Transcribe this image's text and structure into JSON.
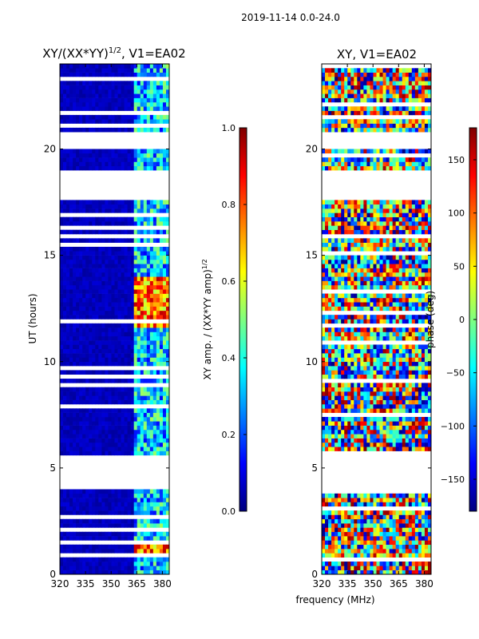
{
  "suptitle": "2019-11-14 0.0-24.0",
  "xlabel": "frequency (MHz)",
  "colors": {
    "jet": [
      "#00007f",
      "#0000ff",
      "#007fff",
      "#00ffff",
      "#7fff7f",
      "#ffff00",
      "#ff7f00",
      "#ff0000",
      "#7f0000"
    ],
    "background": "#ffffff"
  },
  "chart_data": [
    {
      "type": "heatmap",
      "title_base": "XY/(XX*YY)",
      "title_sup": "1/2",
      "title_tail": ", V1=EA02",
      "ylabel": "UT (hours)",
      "xlim": [
        320,
        384
      ],
      "ylim": [
        0,
        24
      ],
      "xticks": [
        320,
        335,
        350,
        365,
        380
      ],
      "yticks": [
        0,
        5,
        10,
        15,
        20
      ],
      "flagged_hour_ranges": [
        [
          4.0,
          5.6
        ],
        [
          17.5,
          19.0
        ],
        [
          20.0,
          20.7
        ]
      ],
      "bright_band_mhz": [
        363,
        383
      ],
      "peak_hours": [
        [
          11.6,
          13.9
        ],
        [
          0.8,
          1.3
        ]
      ],
      "colorbar": {
        "label_base": "XY amp. / (XX*YY amp)",
        "label_sup": "1/2",
        "range": [
          0.0,
          1.0
        ],
        "ticks": [
          "0.0",
          "0.2",
          "0.4",
          "0.6",
          "0.8",
          "1.0"
        ]
      }
    },
    {
      "type": "heatmap",
      "title": "XY, V1=EA02",
      "ylabel": "",
      "xlim": [
        320,
        384
      ],
      "ylim": [
        0,
        24
      ],
      "xticks": [
        320,
        335,
        350,
        365,
        380
      ],
      "yticks": [
        0,
        5,
        10,
        15,
        20
      ],
      "flagged_hour_ranges": [
        [
          4.0,
          5.6
        ],
        [
          17.5,
          19.0
        ],
        [
          20.0,
          20.7
        ]
      ],
      "colorbar": {
        "label": "phase (deg)",
        "range": [
          -180,
          180
        ],
        "ticks": [
          "150",
          "100",
          "50",
          "0",
          "−50",
          "−100",
          "−150"
        ]
      }
    }
  ]
}
